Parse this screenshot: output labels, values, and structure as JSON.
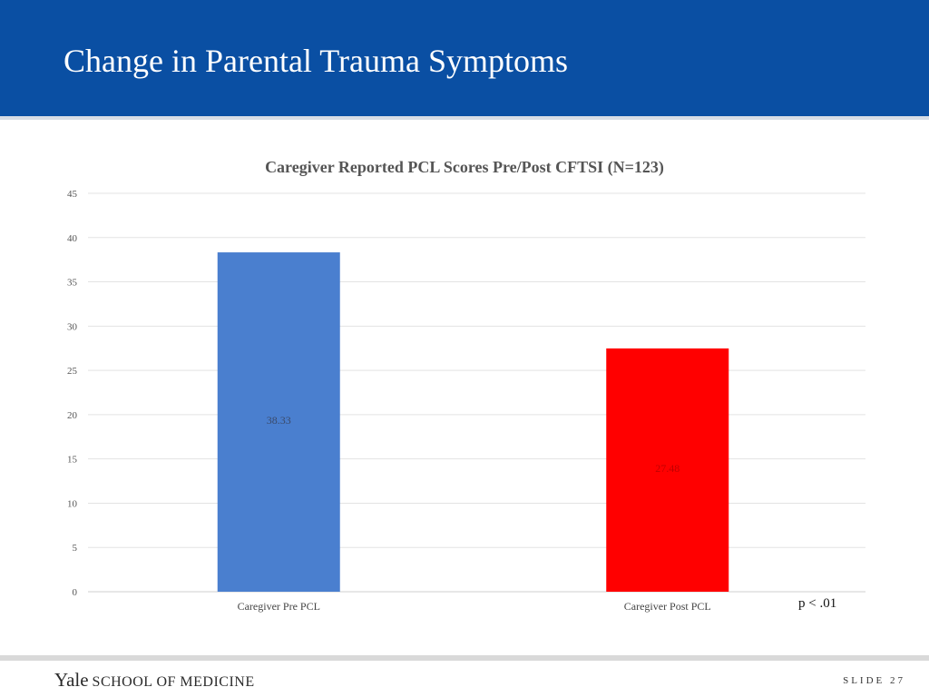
{
  "slide": {
    "title": "Change in Parental Trauma Symptoms",
    "p_value_note": "p < .01",
    "footer_logo_yale": "Yale",
    "footer_logo_school": "SCHOOL OF MEDICINE",
    "slide_number": "SLIDE 27"
  },
  "colors": {
    "header_bg": "#0a4fa3",
    "bar_pre": "#4a7fcf",
    "bar_post": "#ff0000"
  },
  "chart_data": {
    "type": "bar",
    "title": "Caregiver Reported PCL Scores Pre/Post CFTSI (N=123)",
    "categories": [
      "Caregiver Pre PCL",
      "Caregiver Post PCL"
    ],
    "values": [
      38.33,
      27.48
    ],
    "value_labels": [
      "38.33",
      "27.48"
    ],
    "bar_colors": [
      "#4a7fcf",
      "#ff0000"
    ],
    "xlabel": "",
    "ylabel": "",
    "ylim": [
      0,
      45
    ],
    "yticks": [
      0,
      5,
      10,
      15,
      20,
      25,
      30,
      35,
      40,
      45
    ],
    "grid": true,
    "legend": "none"
  }
}
